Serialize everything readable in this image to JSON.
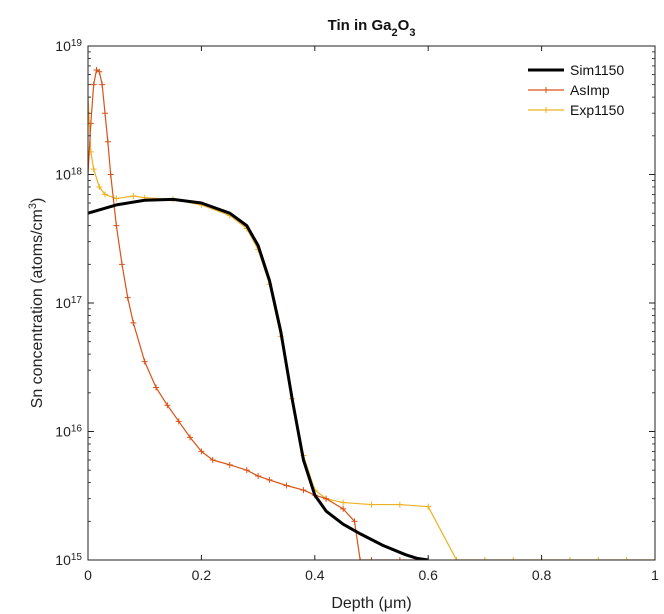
{
  "chart_data": {
    "type": "line",
    "title": "Tin in Ga2O3",
    "xlabel": "Depth (μm)",
    "ylabel": "Sn concentration (atoms/cm3)",
    "xlim": [
      0,
      1
    ],
    "ylim": [
      1000000000000000.0,
      1e+19
    ],
    "y_scale": "log",
    "x_ticks": [
      0,
      0.2,
      0.4,
      0.6,
      0.8,
      1
    ],
    "x_tick_labels": [
      "0",
      "0.2",
      "0.4",
      "0.6",
      "0.8",
      "1"
    ],
    "y_ticks": [
      1000000000000000.0,
      1e+16,
      1e+17,
      1e+18,
      1e+19
    ],
    "y_tick_labels": [
      {
        "base": "10",
        "exp": "15"
      },
      {
        "base": "10",
        "exp": "16"
      },
      {
        "base": "10",
        "exp": "17"
      },
      {
        "base": "10",
        "exp": "18"
      },
      {
        "base": "10",
        "exp": "19"
      }
    ],
    "grid": false,
    "legend_position": "top-right",
    "series": [
      {
        "name": "Sim1150",
        "color": "#000000",
        "marker": "none",
        "x": [
          0,
          0.05,
          0.1,
          0.15,
          0.2,
          0.25,
          0.28,
          0.3,
          0.32,
          0.34,
          0.36,
          0.38,
          0.4,
          0.42,
          0.45,
          0.48,
          0.52,
          0.56,
          0.58,
          0.6
        ],
        "y": [
          5e+17,
          5.8e+17,
          6.3e+17,
          6.4e+17,
          6e+17,
          5e+17,
          4e+17,
          2.8e+17,
          1.5e+17,
          6e+16,
          1.8e+16,
          6000000000000000.0,
          3200000000000000.0,
          2400000000000000.0,
          1900000000000000.0,
          1600000000000000.0,
          1300000000000000.0,
          1100000000000000.0,
          1030000000000000.0,
          1000000000000000.0
        ]
      },
      {
        "name": "AsImp",
        "color": "#d95319",
        "marker": "+",
        "x": [
          0,
          0.005,
          0.01,
          0.015,
          0.02,
          0.025,
          0.03,
          0.035,
          0.04,
          0.05,
          0.06,
          0.07,
          0.08,
          0.1,
          0.12,
          0.14,
          0.16,
          0.18,
          0.2,
          0.22,
          0.25,
          0.28,
          0.3,
          0.32,
          0.35,
          0.38,
          0.4,
          0.42,
          0.45,
          0.47,
          0.48,
          0.5,
          0.55,
          0.6
        ],
        "y": [
          1e+18,
          2.5e+18,
          5e+18,
          6.5e+18,
          6.3e+18,
          5e+18,
          3e+18,
          1.8e+18,
          1e+18,
          4e+17,
          2e+17,
          1.1e+17,
          7e+16,
          3.5e+16,
          2.2e+16,
          1.6e+16,
          1.2e+16,
          9000000000000000.0,
          7000000000000000.0,
          6000000000000000.0,
          5500000000000000.0,
          5000000000000000.0,
          4500000000000000.0,
          4200000000000000.0,
          3800000000000000.0,
          3500000000000000.0,
          3200000000000000.0,
          3000000000000000.0,
          2500000000000000.0,
          2000000000000000.0,
          1000000000000000.0,
          1000000000000000.0,
          1000000000000000.0,
          1000000000000000.0
        ]
      },
      {
        "name": "Exp1150",
        "color": "#edb120",
        "marker": "+",
        "x": [
          0,
          0.005,
          0.01,
          0.02,
          0.03,
          0.05,
          0.08,
          0.1,
          0.15,
          0.2,
          0.25,
          0.28,
          0.3,
          0.32,
          0.34,
          0.36,
          0.38,
          0.4,
          0.42,
          0.45,
          0.5,
          0.55,
          0.6,
          0.65,
          0.7,
          0.75,
          0.8,
          0.85,
          0.9,
          0.95,
          1.0
        ],
        "y": [
          4e+18,
          1.5e+18,
          1.1e+18,
          8e+17,
          7e+17,
          6.5e+17,
          6.8e+17,
          6.6e+17,
          6.4e+17,
          5.8e+17,
          4.8e+17,
          3.8e+17,
          2.6e+17,
          1.4e+17,
          5.5e+16,
          1.8e+16,
          6500000000000000.0,
          3500000000000000.0,
          3000000000000000.0,
          2800000000000000.0,
          2700000000000000.0,
          2700000000000000.0,
          2600000000000000.0,
          1000000000000000.0,
          1000000000000000.0,
          1000000000000000.0,
          1000000000000000.0,
          1000000000000000.0,
          1000000000000000.0,
          1000000000000000.0,
          1000000000000000.0
        ]
      }
    ]
  }
}
